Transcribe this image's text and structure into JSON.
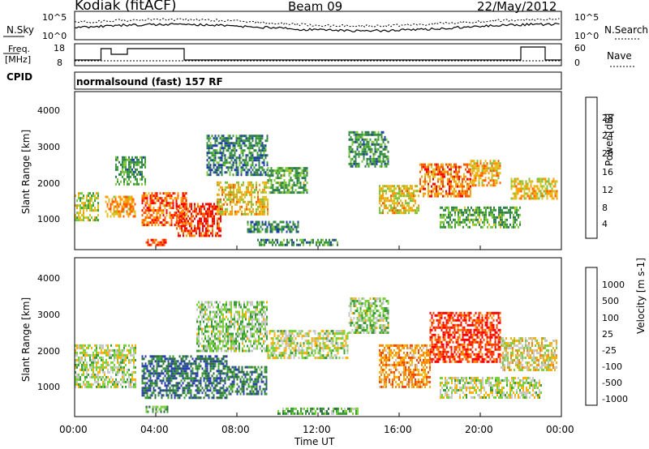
{
  "header": {
    "station": "Kodiak (fitACF)",
    "beam": "Beam 09",
    "date": "22/May/2012"
  },
  "noise_panel": {
    "left_label": "N.Sky",
    "right_label": "N.Search",
    "left_ticks": [
      "10^5",
      "10^0"
    ],
    "right_ticks": [
      "10^5",
      "10^0"
    ]
  },
  "freq_panel": {
    "left_label_line1": "Freq.",
    "left_label_line2": "[MHz]",
    "right_label": "Nave",
    "left_ticks": [
      "18",
      "8"
    ],
    "right_ticks": [
      "60",
      "0"
    ]
  },
  "cpid": {
    "label": "CPID",
    "mode": "normalsound (fast) 157 RF"
  },
  "colors": {
    "power_scale": [
      "#0000ff",
      "#1f3fa8",
      "#2f7a50",
      "#3b9a3b",
      "#7cc63a",
      "#e0c020",
      "#ff9a00",
      "#ff5a00",
      "#ff0000"
    ],
    "velocity_scale": [
      "#2b3fb0",
      "#2e7040",
      "#3b9b3b",
      "#7ad23a",
      "#c8c8c8",
      "#ffb000",
      "#ff8800",
      "#ff4400",
      "#ff0000"
    ]
  },
  "chart_data": [
    {
      "type": "heatmap",
      "name": "power",
      "ylabel": "Slant Range [km]",
      "y_ticks": [
        "1000",
        "2000",
        "3000",
        "4000"
      ],
      "ylim": [
        200,
        4600
      ],
      "colorbar_label": "Power [dB]",
      "colorbar_ticks": [
        "4",
        "8",
        "12",
        "16",
        "20",
        "24",
        "28"
      ],
      "colorbar_range": [
        0,
        32
      ],
      "regions": [
        {
          "t0": 0.0,
          "t1": 1.2,
          "r0": 1000,
          "r1": 1800,
          "level": 0.55
        },
        {
          "t0": 1.5,
          "t1": 3.0,
          "r0": 1100,
          "r1": 1700,
          "level": 0.72
        },
        {
          "t0": 2.0,
          "t1": 3.5,
          "r0": 2000,
          "r1": 2800,
          "level": 0.38
        },
        {
          "t0": 3.3,
          "t1": 5.5,
          "r0": 900,
          "r1": 1800,
          "level": 0.82
        },
        {
          "t0": 5.0,
          "t1": 7.2,
          "r0": 600,
          "r1": 1500,
          "level": 0.9
        },
        {
          "t0": 7.0,
          "t1": 9.5,
          "r0": 1200,
          "r1": 2100,
          "level": 0.62
        },
        {
          "t0": 6.5,
          "t1": 9.5,
          "r0": 2300,
          "r1": 3400,
          "level": 0.3
        },
        {
          "t0": 9.5,
          "t1": 11.5,
          "r0": 1800,
          "r1": 2500,
          "level": 0.4
        },
        {
          "t0": 8.5,
          "t1": 11.0,
          "r0": 700,
          "r1": 1000,
          "level": 0.3
        },
        {
          "t0": 13.5,
          "t1": 15.5,
          "r0": 2500,
          "r1": 3500,
          "level": 0.35
        },
        {
          "t0": 15.0,
          "t1": 17.0,
          "r0": 1200,
          "r1": 2000,
          "level": 0.62
        },
        {
          "t0": 17.0,
          "t1": 19.5,
          "r0": 1700,
          "r1": 2600,
          "level": 0.78
        },
        {
          "t0": 19.5,
          "t1": 21.0,
          "r0": 2000,
          "r1": 2700,
          "level": 0.7
        },
        {
          "t0": 21.5,
          "t1": 23.8,
          "r0": 1600,
          "r1": 2200,
          "level": 0.65
        },
        {
          "t0": 18.0,
          "t1": 22.0,
          "r0": 800,
          "r1": 1400,
          "level": 0.4
        },
        {
          "t0": 3.5,
          "t1": 4.5,
          "r0": 350,
          "r1": 500,
          "level": 0.85
        },
        {
          "t0": 9.0,
          "t1": 13.0,
          "r0": 300,
          "r1": 500,
          "level": 0.35
        }
      ]
    },
    {
      "type": "heatmap",
      "name": "velocity",
      "ylabel": "Slant Range [km]",
      "y_ticks": [
        "1000",
        "2000",
        "3000",
        "4000"
      ],
      "ylim": [
        200,
        4600
      ],
      "colorbar_label": "Velocity [m s-1]",
      "colorbar_ticks": [
        "1000",
        "500",
        "100",
        "25",
        "-25",
        "-100",
        "-500",
        "-1000"
      ],
      "regions": [
        {
          "t0": 0.0,
          "t1": 3.0,
          "r0": 1000,
          "r1": 2200,
          "level": 0.45
        },
        {
          "t0": 3.3,
          "t1": 7.5,
          "r0": 700,
          "r1": 1900,
          "level": 0.15
        },
        {
          "t0": 7.5,
          "t1": 9.5,
          "r0": 800,
          "r1": 1600,
          "level": 0.2
        },
        {
          "t0": 6.0,
          "t1": 9.5,
          "r0": 2000,
          "r1": 3400,
          "level": 0.4
        },
        {
          "t0": 9.5,
          "t1": 13.5,
          "r0": 1800,
          "r1": 2600,
          "level": 0.47
        },
        {
          "t0": 13.5,
          "t1": 15.5,
          "r0": 2500,
          "r1": 3500,
          "level": 0.4
        },
        {
          "t0": 15.0,
          "t1": 17.5,
          "r0": 1000,
          "r1": 2200,
          "level": 0.7
        },
        {
          "t0": 17.5,
          "t1": 21.0,
          "r0": 1700,
          "r1": 3100,
          "level": 0.88
        },
        {
          "t0": 21.0,
          "t1": 23.8,
          "r0": 1500,
          "r1": 2400,
          "level": 0.55
        },
        {
          "t0": 18.0,
          "t1": 23.0,
          "r0": 700,
          "r1": 1300,
          "level": 0.47
        },
        {
          "t0": 3.5,
          "t1": 4.6,
          "r0": 350,
          "r1": 500,
          "level": 0.3
        },
        {
          "t0": 10.0,
          "t1": 14.0,
          "r0": 300,
          "r1": 450,
          "level": 0.32
        }
      ]
    }
  ],
  "x_axis": {
    "label": "Time UT",
    "ticks": [
      "00:00",
      "04:00",
      "08:00",
      "12:00",
      "16:00",
      "20:00",
      "00:00"
    ],
    "range_hours": [
      0,
      24
    ]
  }
}
